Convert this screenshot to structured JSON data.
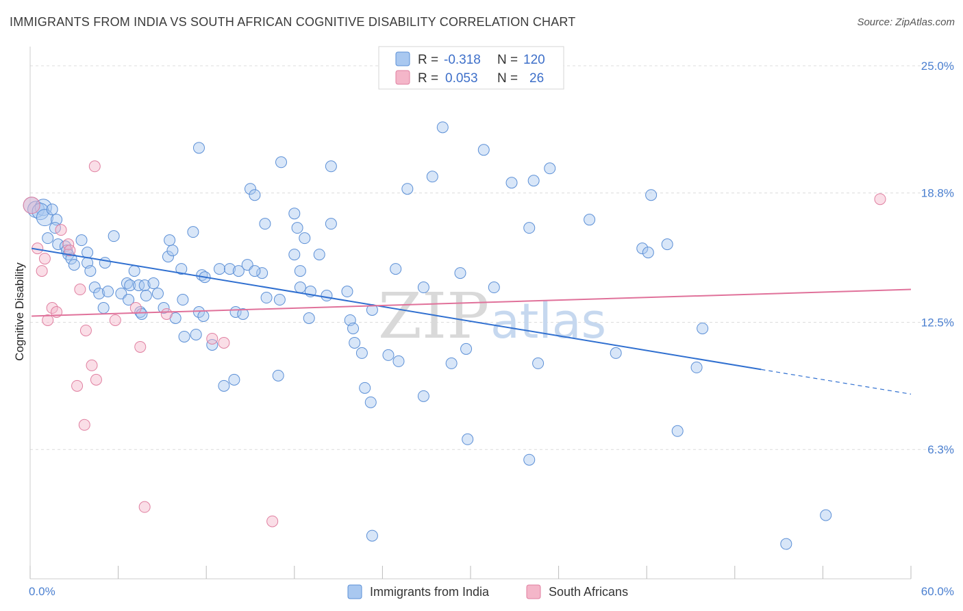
{
  "title": "IMMIGRANTS FROM INDIA VS SOUTH AFRICAN COGNITIVE DISABILITY CORRELATION CHART",
  "source": "Source: ZipAtlas.com",
  "watermark": {
    "zip": "ZIP",
    "atlas": "atlas"
  },
  "legend": {
    "r_label": "R =",
    "n_label": "N =",
    "rows": [
      {
        "r": "-0.318",
        "n": "120",
        "color": "#a9c8f0"
      },
      {
        "r": "0.053",
        "n": "26",
        "color": "#f4b6c9"
      }
    ]
  },
  "chart_data": {
    "type": "scatter",
    "title": "IMMIGRANTS FROM INDIA VS SOUTH AFRICAN COGNITIVE DISABILITY CORRELATION CHART",
    "xlabel": "",
    "ylabel": "Cognitive Disability",
    "xlim": [
      0,
      60
    ],
    "ylim": [
      0,
      25.8
    ],
    "x_tick_labels": [
      "0.0%",
      "60.0%"
    ],
    "y_ticks": [
      6.3,
      12.5,
      18.8,
      25.0
    ],
    "y_tick_labels": [
      "6.3%",
      "12.5%",
      "18.8%",
      "25.0%"
    ],
    "grid": "horizontal dashed",
    "legend_position": "top-center",
    "series": [
      {
        "name": "Immigrants from India",
        "color": "#a9c8f0",
        "stroke": "#5b8fd6",
        "trend": {
          "x0": 0.1,
          "y0": 16.1,
          "x1": 49.8,
          "y1": 10.2,
          "dash_to_x": 60,
          "dash_to_y": 9.0
        },
        "points": [
          [
            0.1,
            18.2
          ],
          [
            0.4,
            18.0
          ],
          [
            0.9,
            18.1
          ],
          [
            0.7,
            17.9
          ],
          [
            1.0,
            17.6
          ],
          [
            1.5,
            18.0
          ],
          [
            1.8,
            17.5
          ],
          [
            1.7,
            17.1
          ],
          [
            1.2,
            16.6
          ],
          [
            1.9,
            16.3
          ],
          [
            2.4,
            16.2
          ],
          [
            2.5,
            16.0
          ],
          [
            2.6,
            15.8
          ],
          [
            2.8,
            15.6
          ],
          [
            3.5,
            16.5
          ],
          [
            3.0,
            15.3
          ],
          [
            3.9,
            15.4
          ],
          [
            4.1,
            15.0
          ],
          [
            3.9,
            15.9
          ],
          [
            5.1,
            15.4
          ],
          [
            5.7,
            16.7
          ],
          [
            4.4,
            14.2
          ],
          [
            4.7,
            13.9
          ],
          [
            5.3,
            14.0
          ],
          [
            5.0,
            13.2
          ],
          [
            6.2,
            13.9
          ],
          [
            6.6,
            14.4
          ],
          [
            6.8,
            14.3
          ],
          [
            7.1,
            15.0
          ],
          [
            7.4,
            14.3
          ],
          [
            7.8,
            14.3
          ],
          [
            8.4,
            14.4
          ],
          [
            8.7,
            13.9
          ],
          [
            7.9,
            13.8
          ],
          [
            6.7,
            13.6
          ],
          [
            7.5,
            13.0
          ],
          [
            7.6,
            12.9
          ],
          [
            9.1,
            13.2
          ],
          [
            9.4,
            15.7
          ],
          [
            9.7,
            16.0
          ],
          [
            9.5,
            16.5
          ],
          [
            10.3,
            15.1
          ],
          [
            10.4,
            13.6
          ],
          [
            9.9,
            12.7
          ],
          [
            10.5,
            11.8
          ],
          [
            11.1,
            16.9
          ],
          [
            11.7,
            14.8
          ],
          [
            11.9,
            14.7
          ],
          [
            11.5,
            13.0
          ],
          [
            11.8,
            12.8
          ],
          [
            11.3,
            11.9
          ],
          [
            11.5,
            21.0
          ],
          [
            12.9,
            15.1
          ],
          [
            13.6,
            15.1
          ],
          [
            14.2,
            15.0
          ],
          [
            12.4,
            11.4
          ],
          [
            13.2,
            9.4
          ],
          [
            13.9,
            9.7
          ],
          [
            14.0,
            13.0
          ],
          [
            14.5,
            12.9
          ],
          [
            15.0,
            19.0
          ],
          [
            15.3,
            18.7
          ],
          [
            16.0,
            17.3
          ],
          [
            14.8,
            15.3
          ],
          [
            15.8,
            14.9
          ],
          [
            15.3,
            15.0
          ],
          [
            16.1,
            13.7
          ],
          [
            17.0,
            13.6
          ],
          [
            16.9,
            9.9
          ],
          [
            17.1,
            20.3
          ],
          [
            18.0,
            17.8
          ],
          [
            18.0,
            15.8
          ],
          [
            18.2,
            17.1
          ],
          [
            18.4,
            15.0
          ],
          [
            18.7,
            16.6
          ],
          [
            18.4,
            14.2
          ],
          [
            19.1,
            14.0
          ],
          [
            19.0,
            12.7
          ],
          [
            19.7,
            15.8
          ],
          [
            20.2,
            13.8
          ],
          [
            20.5,
            20.1
          ],
          [
            20.5,
            17.3
          ],
          [
            21.6,
            14.0
          ],
          [
            21.8,
            12.6
          ],
          [
            22.0,
            12.2
          ],
          [
            22.6,
            11.0
          ],
          [
            22.1,
            11.5
          ],
          [
            22.8,
            9.3
          ],
          [
            23.3,
            13.1
          ],
          [
            23.2,
            8.6
          ],
          [
            23.3,
            2.1
          ],
          [
            24.4,
            10.9
          ],
          [
            25.1,
            10.6
          ],
          [
            24.9,
            15.1
          ],
          [
            25.7,
            19.0
          ],
          [
            26.8,
            14.2
          ],
          [
            26.8,
            8.9
          ],
          [
            27.4,
            19.6
          ],
          [
            28.1,
            22.0
          ],
          [
            28.7,
            10.5
          ],
          [
            29.3,
            14.9
          ],
          [
            29.7,
            11.2
          ],
          [
            29.8,
            6.8
          ],
          [
            30.9,
            20.9
          ],
          [
            31.6,
            14.2
          ],
          [
            32.8,
            19.3
          ],
          [
            34.0,
            17.1
          ],
          [
            34.3,
            19.4
          ],
          [
            34.6,
            10.5
          ],
          [
            34.0,
            5.8
          ],
          [
            35.4,
            20.0
          ],
          [
            38.1,
            17.5
          ],
          [
            39.9,
            11.0
          ],
          [
            41.7,
            16.1
          ],
          [
            42.1,
            15.9
          ],
          [
            42.3,
            18.7
          ],
          [
            43.4,
            16.3
          ],
          [
            44.1,
            7.2
          ],
          [
            45.4,
            10.3
          ],
          [
            45.8,
            12.2
          ],
          [
            51.5,
            1.7
          ],
          [
            54.2,
            3.1
          ]
        ]
      },
      {
        "name": "South Africans",
        "color": "#f4b6c9",
        "stroke": "#e07fa0",
        "trend": {
          "x0": 0.1,
          "y0": 12.8,
          "x1": 60,
          "y1": 14.1
        },
        "points": [
          [
            0.1,
            18.2
          ],
          [
            0.5,
            16.1
          ],
          [
            0.8,
            15.0
          ],
          [
            1.0,
            15.6
          ],
          [
            1.2,
            12.6
          ],
          [
            1.5,
            13.2
          ],
          [
            1.8,
            13.0
          ],
          [
            2.1,
            17.0
          ],
          [
            2.6,
            16.3
          ],
          [
            2.7,
            16.0
          ],
          [
            3.2,
            9.4
          ],
          [
            3.4,
            14.1
          ],
          [
            3.8,
            12.1
          ],
          [
            3.7,
            7.5
          ],
          [
            4.2,
            10.4
          ],
          [
            4.5,
            9.7
          ],
          [
            4.4,
            20.1
          ],
          [
            5.8,
            12.6
          ],
          [
            7.2,
            13.2
          ],
          [
            7.5,
            11.3
          ],
          [
            7.8,
            3.5
          ],
          [
            9.3,
            12.9
          ],
          [
            12.4,
            11.7
          ],
          [
            13.2,
            11.5
          ],
          [
            16.5,
            2.8
          ],
          [
            57.9,
            18.5
          ]
        ]
      }
    ]
  },
  "bottom_legend": [
    {
      "label": "Immigrants from India",
      "color": "#a9c8f0"
    },
    {
      "label": "South Africans",
      "color": "#f4b6c9"
    }
  ]
}
